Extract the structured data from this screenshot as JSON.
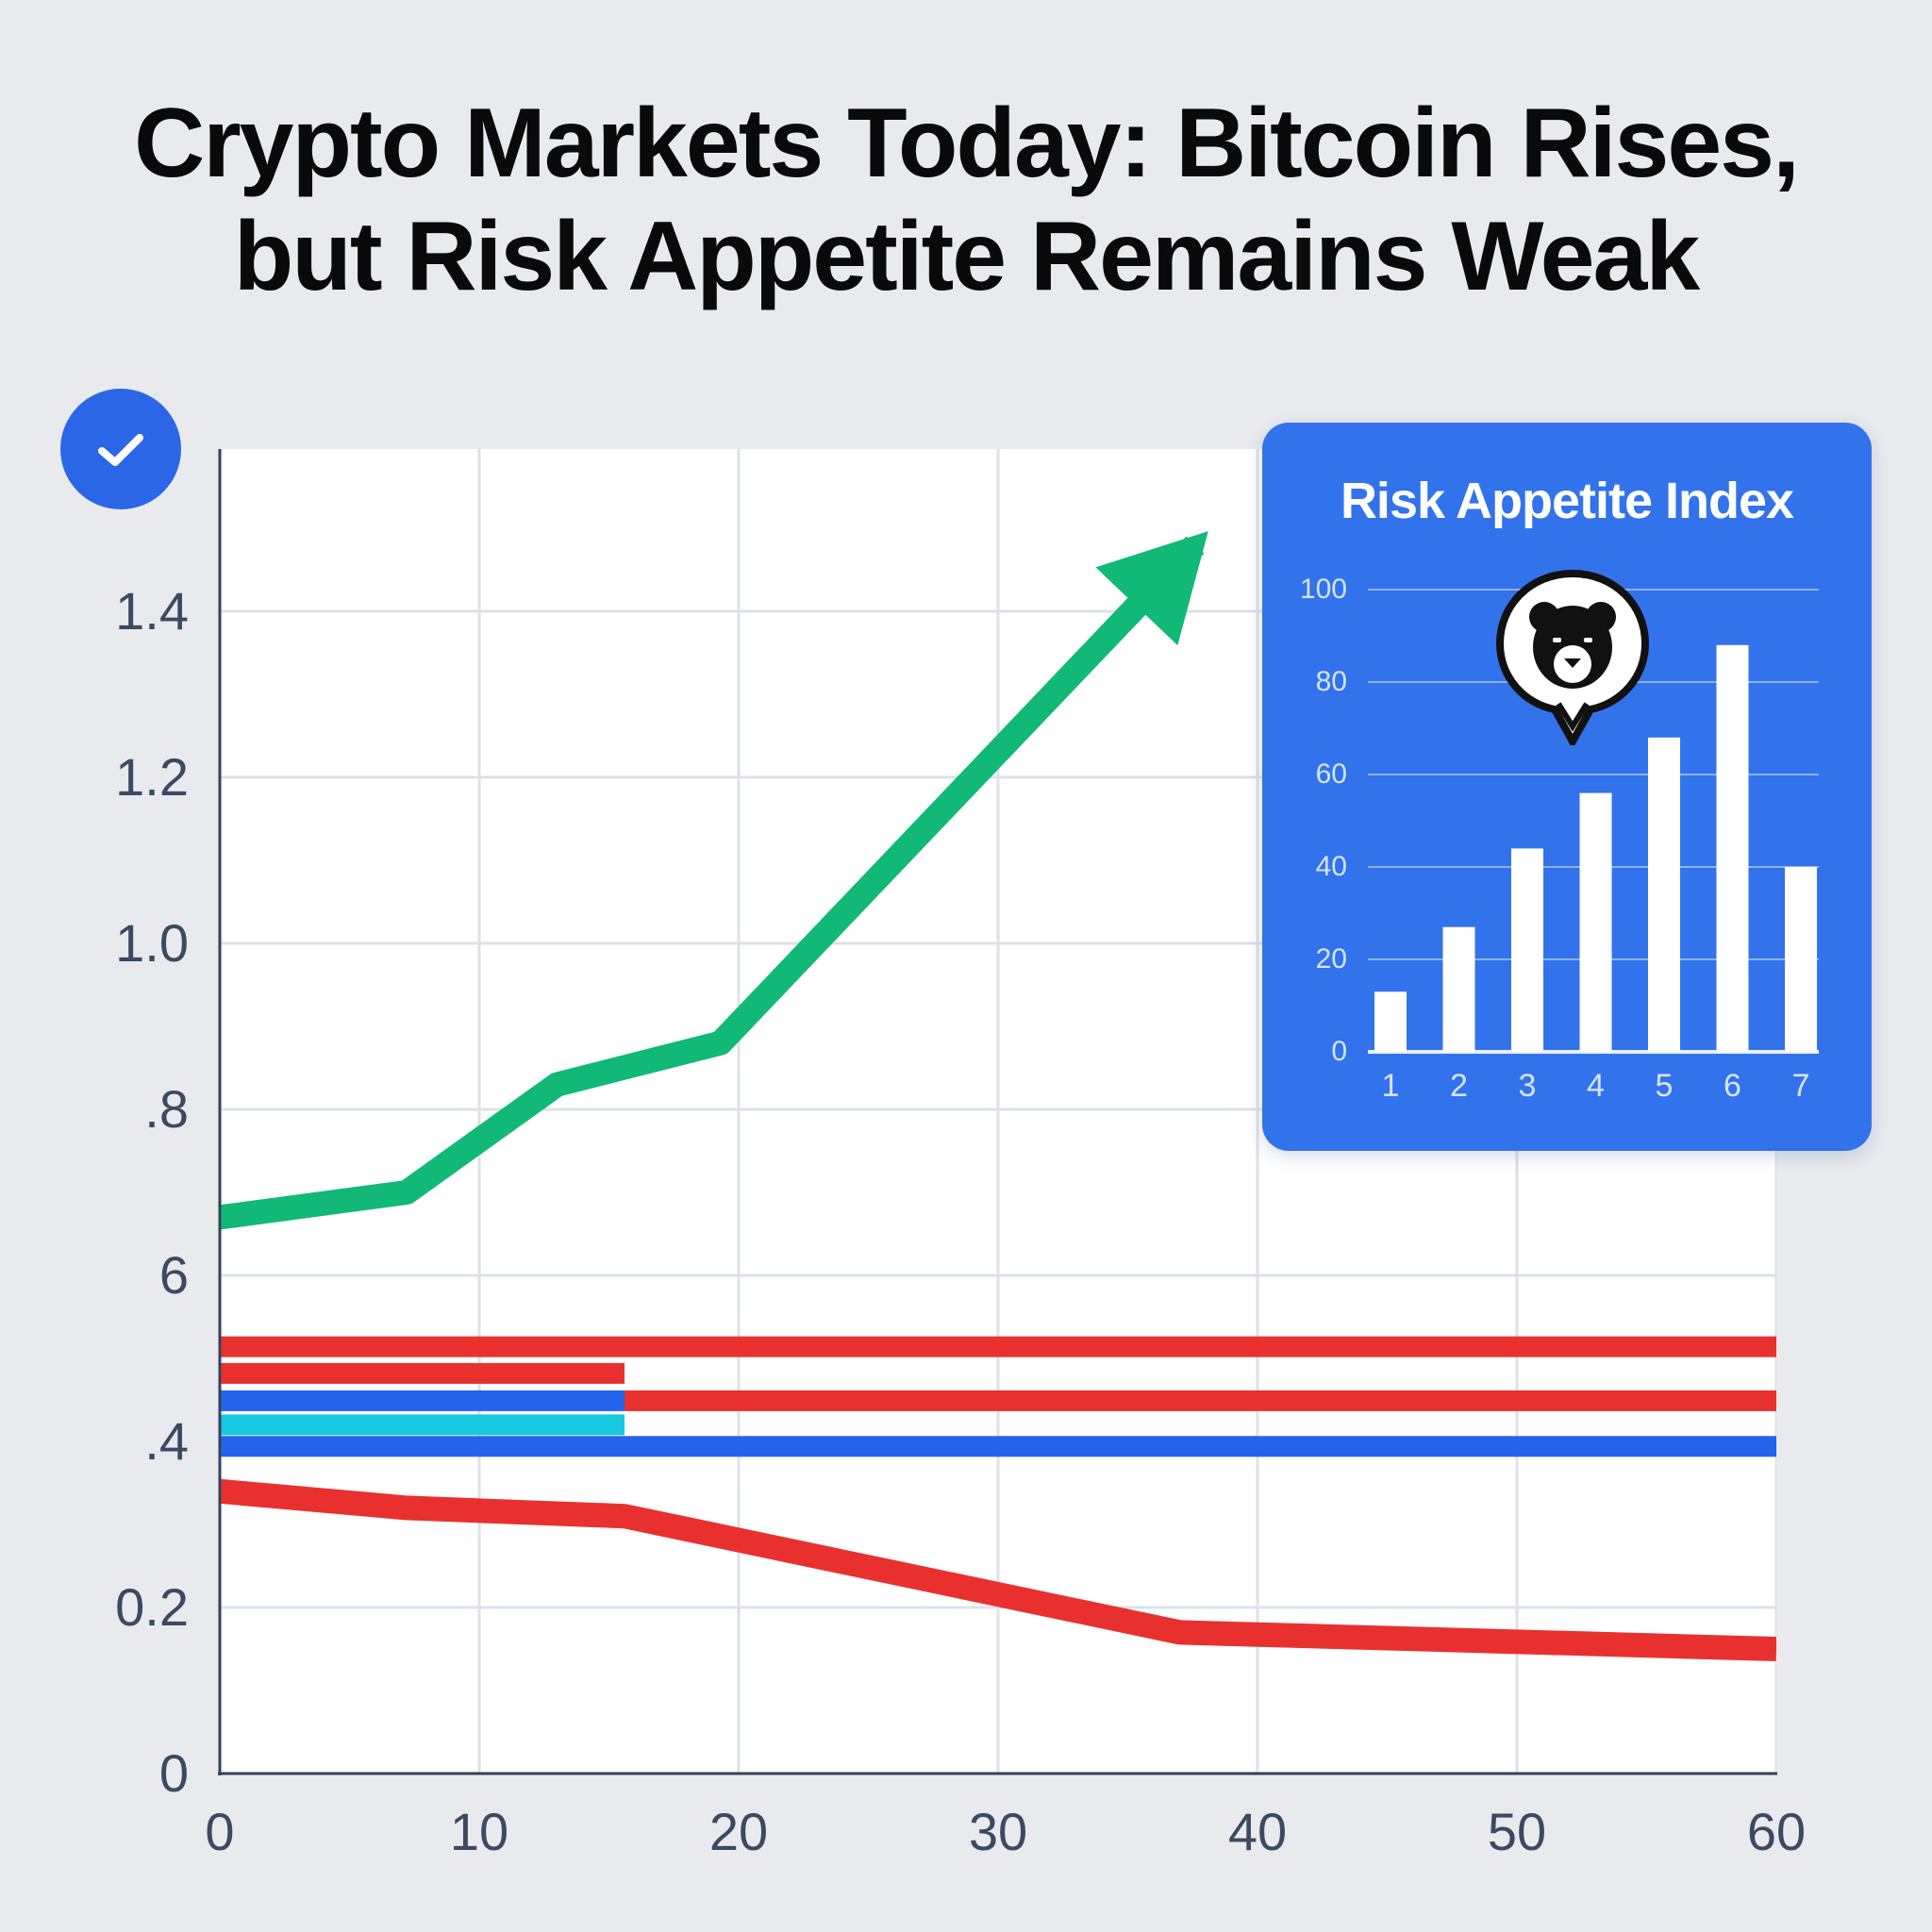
{
  "headline": {
    "line1": "Crypto Markets Today: Bitcoin Rises,",
    "line2": "but Risk Appetite Remains Weak"
  },
  "badge": {
    "icon": "check-icon",
    "color": "#2a66e6"
  },
  "colors": {
    "background": "#e8eaed",
    "green": "#12b876",
    "red": "#e8312f",
    "blue": "#2563eb",
    "cyan": "#17c8e0",
    "inset_bg": "#3273ec",
    "axis_text": "#3b4a63",
    "grid": "#dde1ea"
  },
  "axes": {
    "y_ticks": [
      "1.4",
      "1.2",
      "1.0",
      ".8",
      "6",
      ".4",
      "0.2",
      "0"
    ],
    "x_ticks": [
      "0",
      "10",
      "20",
      "30",
      "40",
      "50",
      "60"
    ]
  },
  "inset": {
    "title": "Risk Appetite Index",
    "icon": "bear-icon",
    "y_ticks": [
      "100",
      "80",
      "60",
      "40",
      "20",
      "0"
    ],
    "x_ticks": [
      "1",
      "2",
      "3",
      "4",
      "5",
      "6",
      "7"
    ]
  },
  "chart_data": [
    {
      "type": "line",
      "title": "Crypto Markets Today: Bitcoin Rises, but Risk Appetite Remains Weak",
      "xlabel": "",
      "ylabel": "",
      "xlim": [
        0,
        60
      ],
      "ylim": [
        0,
        1.6
      ],
      "x_tick_labels": [
        "0",
        "10",
        "20",
        "30",
        "40",
        "50",
        "60"
      ],
      "y_tick_labels": [
        "0",
        "0.2",
        ".4",
        "6",
        ".8",
        "1.0",
        "1.2",
        "1.4"
      ],
      "grid": true,
      "legend": null,
      "series": [
        {
          "name": "Bitcoin (rising, green arrow)",
          "color": "#12b876",
          "points": [
            [
              0,
              0.67
            ],
            [
              7.2,
              0.7
            ],
            [
              13,
              0.83
            ],
            [
              19.3,
              0.88
            ],
            [
              37.6,
              1.48
            ]
          ],
          "annotation": "arrowhead at end"
        },
        {
          "name": "Red declining line",
          "color": "#e8312f",
          "points": [
            [
              0,
              0.34
            ],
            [
              7.2,
              0.32
            ],
            [
              15.6,
              0.31
            ],
            [
              37,
              0.17
            ],
            [
              60,
              0.15
            ]
          ]
        },
        {
          "name": "Red band 1",
          "color": "#e8312f",
          "points": [
            [
              0,
              0.514
            ],
            [
              60,
              0.514
            ]
          ]
        },
        {
          "name": "Red band 2",
          "color": "#e8312f",
          "points": [
            [
              0,
              0.482
            ],
            [
              15.6,
              0.482
            ]
          ]
        },
        {
          "name": "Blue band 1",
          "color": "#2563eb",
          "points": [
            [
              0,
              0.449
            ],
            [
              15.6,
              0.449
            ]
          ]
        },
        {
          "name": "Red band 3",
          "color": "#e8312f",
          "points": [
            [
              15.6,
              0.449
            ],
            [
              60,
              0.449
            ]
          ]
        },
        {
          "name": "Cyan band",
          "color": "#17c8e0",
          "points": [
            [
              0,
              0.42
            ],
            [
              15.6,
              0.42
            ]
          ]
        },
        {
          "name": "Blue band 2",
          "color": "#2563eb",
          "points": [
            [
              0,
              0.394
            ],
            [
              60,
              0.394
            ]
          ]
        }
      ]
    },
    {
      "type": "bar",
      "title": "Risk Appetite Index",
      "categories": [
        "1",
        "2",
        "3",
        "4",
        "5",
        "6",
        "7"
      ],
      "values": [
        13,
        27,
        44,
        56,
        68,
        88,
        40
      ],
      "ylim": [
        0,
        100
      ],
      "y_tick_labels": [
        "0",
        "20",
        "40",
        "60",
        "80",
        "100"
      ],
      "grid": true,
      "annotation": "bear icon speech bubble above bars 3-4"
    }
  ]
}
